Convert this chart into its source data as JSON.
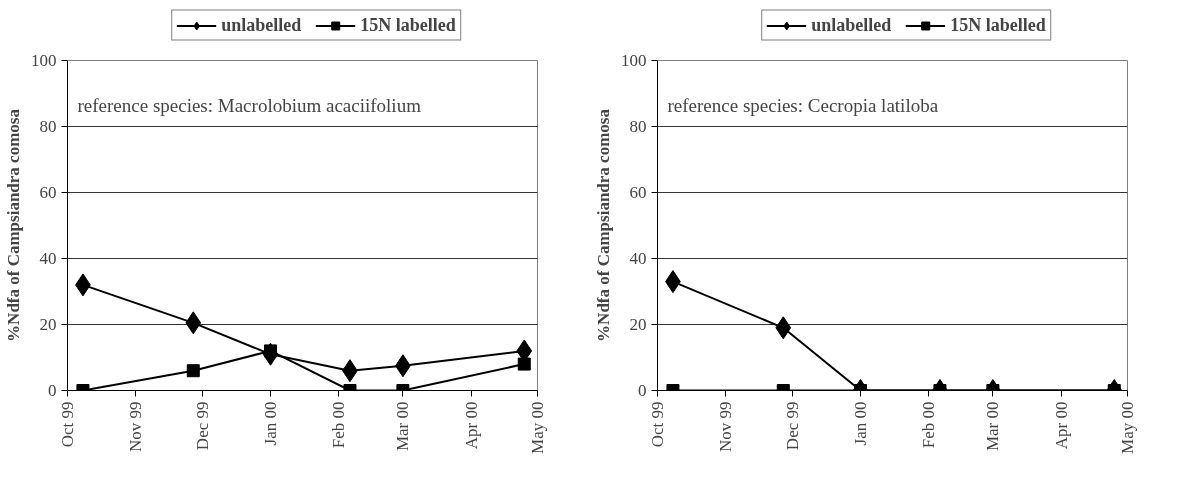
{
  "chart_data": [
    {
      "type": "line",
      "ylabel": "%Ndfa of Campsiandra comosa",
      "annotations": [
        "reference species: Macrolobium acaciifolium"
      ],
      "x": [
        "1999-10-08",
        "1999-11-27",
        "2000-01-01",
        "2000-02-06",
        "2000-03-01",
        "2000-04-25"
      ],
      "series": [
        {
          "name": "unlabelled",
          "color": "#000000",
          "marker": "diamond",
          "values": [
            32,
            20.5,
            11,
            6,
            7.5,
            12
          ]
        },
        {
          "name": "15N labelled",
          "color": "#000000",
          "marker": "square",
          "values": [
            0,
            6,
            12,
            0,
            0,
            8
          ]
        }
      ],
      "xlim": [
        "1999-10-01",
        "2000-05-01"
      ],
      "xticks": [
        {
          "value": "1999-10-01",
          "label": "Oct 99"
        },
        {
          "value": "1999-11-01",
          "label": "Nov 99"
        },
        {
          "value": "1999-12-01",
          "label": "Dec 99"
        },
        {
          "value": "2000-01-01",
          "label": "Jan 00"
        },
        {
          "value": "2000-02-01",
          "label": "Feb 00"
        },
        {
          "value": "2000-03-01",
          "label": "Mar 00"
        },
        {
          "value": "2000-04-01",
          "label": "Apr 00"
        },
        {
          "value": "2000-05-01",
          "label": "May 00"
        }
      ],
      "ylim": [
        0,
        100
      ],
      "yticks": [
        0,
        20,
        40,
        60,
        80,
        100
      ],
      "grid": "y",
      "legend": "top",
      "line_style": "solid"
    },
    {
      "type": "line",
      "ylabel": "%Ndfa of Campsiandra comosa",
      "annotations": [
        "reference species: Cecropia latiloba"
      ],
      "x": [
        "1999-10-08",
        "1999-11-27",
        "2000-01-01",
        "2000-02-06",
        "2000-03-01",
        "2000-04-25"
      ],
      "series": [
        {
          "name": "unlabelled",
          "color": "#000000",
          "marker": "diamond",
          "values": [
            33,
            19,
            0,
            0,
            0,
            0
          ]
        },
        {
          "name": "15N labelled",
          "color": "#000000",
          "marker": "square",
          "values": [
            0,
            0,
            0,
            0,
            0,
            0
          ]
        }
      ],
      "xlim": [
        "1999-10-01",
        "2000-05-01"
      ],
      "xticks": [
        {
          "value": "1999-10-01",
          "label": "Oct 99"
        },
        {
          "value": "1999-11-01",
          "label": "Nov 99"
        },
        {
          "value": "1999-12-01",
          "label": "Dec 99"
        },
        {
          "value": "2000-01-01",
          "label": "Jan 00"
        },
        {
          "value": "2000-02-01",
          "label": "Feb 00"
        },
        {
          "value": "2000-03-01",
          "label": "Mar 00"
        },
        {
          "value": "2000-04-01",
          "label": "Apr 00"
        },
        {
          "value": "2000-05-01",
          "label": "May 00"
        }
      ],
      "ylim": [
        0,
        100
      ],
      "yticks": [
        0,
        20,
        40,
        60,
        80,
        100
      ],
      "grid": "y",
      "legend": "top",
      "line_style": "solid"
    }
  ]
}
